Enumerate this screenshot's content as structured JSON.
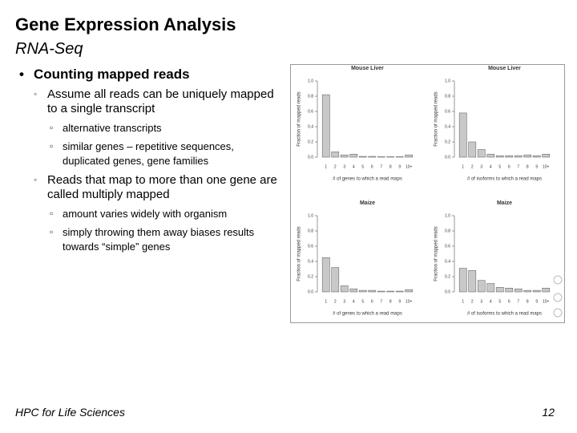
{
  "header": {
    "title": "Gene Expression Analysis",
    "subtitle": "RNA-Seq"
  },
  "bullets": [
    {
      "text": "Counting mapped reads",
      "items": [
        {
          "text": "Assume all reads can be uniquely mapped to a single transcript",
          "items": [
            "alternative transcripts",
            "similar genes – repetitive sequences, duplicated genes, gene families"
          ]
        },
        {
          "text": "Reads that map to more than one gene are called multiply mapped",
          "items": [
            "amount varies widely with organism",
            "simply throwing them away biases results towards “simple” genes"
          ]
        }
      ]
    }
  ],
  "footer": {
    "left": "HPC for Life Sciences",
    "page": "12"
  },
  "chart_data": [
    {
      "type": "bar",
      "title": "Mouse Liver",
      "x_label": "# of genes to which a read maps",
      "y_label": "Fraction of mapped reads",
      "categories": [
        "1",
        "2",
        "3",
        "4",
        "5",
        "6",
        "7",
        "8",
        "9",
        "10+"
      ],
      "values": [
        0.82,
        0.07,
        0.03,
        0.04,
        0.01,
        0.01,
        0.005,
        0.005,
        0.005,
        0.03
      ],
      "color": "#c8c8c8",
      "ylim": [
        0,
        1
      ],
      "yticks": [
        {
          "value": 0,
          "label": "0.0"
        },
        {
          "value": 0.2,
          "label": "0.2"
        },
        {
          "value": 0.4,
          "label": "0.4"
        },
        {
          "value": 0.6,
          "label": "0.6"
        },
        {
          "value": 0.8,
          "label": "0.8"
        },
        {
          "value": 1,
          "label": "1.0"
        }
      ]
    },
    {
      "type": "bar",
      "title": "Mouse Liver",
      "x_label": "# of isoforms to which a read maps",
      "y_label": "Fraction of mapped reads",
      "categories": [
        "1",
        "2",
        "3",
        "4",
        "5",
        "6",
        "7",
        "8",
        "9",
        "10+"
      ],
      "values": [
        0.58,
        0.2,
        0.1,
        0.04,
        0.02,
        0.02,
        0.02,
        0.03,
        0.02,
        0.04
      ],
      "color": "#c8c8c8",
      "ylim": [
        0,
        1
      ],
      "yticks": [
        {
          "value": 0,
          "label": "0.0"
        },
        {
          "value": 0.2,
          "label": "0.2"
        },
        {
          "value": 0.4,
          "label": "0.4"
        },
        {
          "value": 0.6,
          "label": "0.6"
        },
        {
          "value": 0.8,
          "label": "0.8"
        },
        {
          "value": 1,
          "label": "1.0"
        }
      ]
    },
    {
      "type": "bar",
      "title": "Maize",
      "x_label": "# of genes to which a read maps",
      "y_label": "Fraction of mapped reads",
      "categories": [
        "1",
        "2",
        "3",
        "4",
        "5",
        "6",
        "7",
        "8",
        "9",
        "10+"
      ],
      "values": [
        0.45,
        0.32,
        0.08,
        0.04,
        0.02,
        0.02,
        0.01,
        0.01,
        0.01,
        0.03
      ],
      "color": "#c8c8c8",
      "ylim": [
        0,
        1
      ],
      "yticks": [
        {
          "value": 0,
          "label": "0.0"
        },
        {
          "value": 0.2,
          "label": "0.2"
        },
        {
          "value": 0.4,
          "label": "0.4"
        },
        {
          "value": 0.6,
          "label": "0.6"
        },
        {
          "value": 0.8,
          "label": "0.8"
        },
        {
          "value": 1,
          "label": "1.0"
        }
      ]
    },
    {
      "type": "bar",
      "title": "Maize",
      "x_label": "# of isoforms to which a read maps",
      "y_label": "Fraction of mapped reads",
      "categories": [
        "1",
        "2",
        "3",
        "4",
        "5",
        "6",
        "7",
        "8",
        "9",
        "10+"
      ],
      "values": [
        0.31,
        0.28,
        0.15,
        0.11,
        0.06,
        0.05,
        0.04,
        0.02,
        0.02,
        0.05
      ],
      "color": "#c8c8c8",
      "ylim": [
        0,
        1
      ],
      "yticks": [
        {
          "value": 0,
          "label": "0.0"
        },
        {
          "value": 0.2,
          "label": "0.2"
        },
        {
          "value": 0.4,
          "label": "0.4"
        },
        {
          "value": 0.6,
          "label": "0.6"
        },
        {
          "value": 0.8,
          "label": "0.8"
        },
        {
          "value": 1,
          "label": "1.0"
        }
      ]
    }
  ]
}
